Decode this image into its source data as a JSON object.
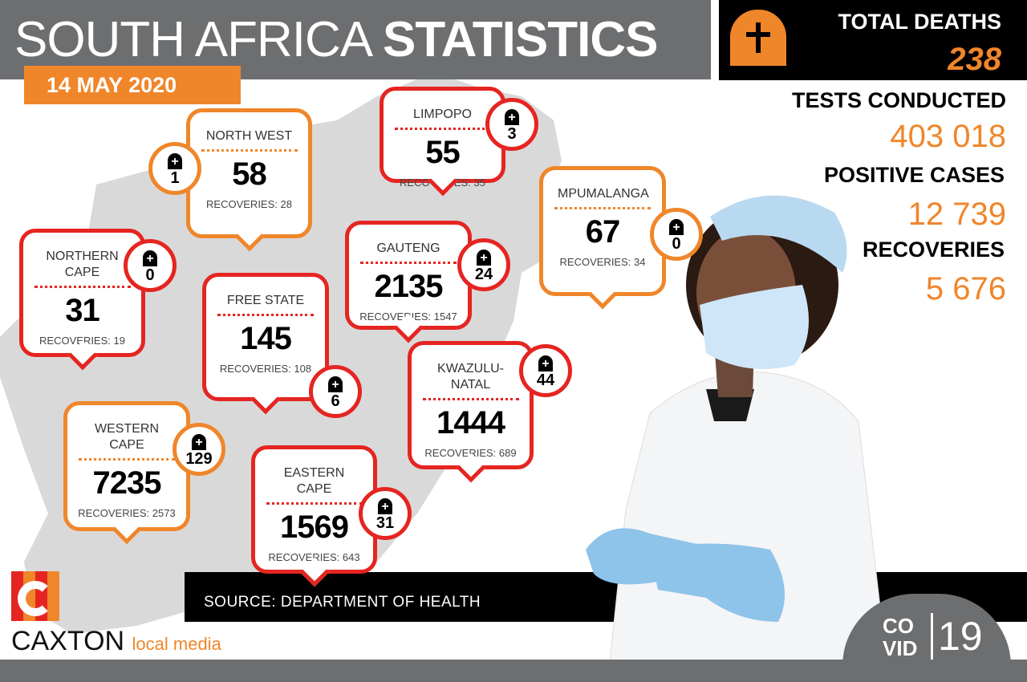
{
  "header": {
    "title_light": "SOUTH AFRICA ",
    "title_bold": "STATISTICS",
    "date": "14 MAY 2020"
  },
  "totals": {
    "deaths_label": "TOTAL DEATHS",
    "deaths": "238",
    "tests_label": "TESTS CONDUCTED",
    "tests": "403 018",
    "positive_label": "POSITIVE CASES",
    "positive": "12 739",
    "recoveries_label": "RECOVERIES",
    "recoveries": "5 676"
  },
  "provinces": [
    {
      "name": "NORTH WEST",
      "cases": "58",
      "recoveries": "RECOVERIES: 28",
      "deaths": "1",
      "color": "#f0862a"
    },
    {
      "name": "LIMPOPO",
      "cases": "55",
      "recoveries": "RECOVERIES: 35",
      "deaths": "3",
      "color": "#e52521"
    },
    {
      "name": "NORTHERN CAPE",
      "cases": "31",
      "recoveries": "RECOVERIES: 19",
      "deaths": "0",
      "color": "#e52521"
    },
    {
      "name": "MPUMALANGA",
      "cases": "67",
      "recoveries": "RECOVERIES: 34",
      "deaths": "0",
      "color": "#f0862a"
    },
    {
      "name": "GAUTENG",
      "cases": "2135",
      "recoveries": "RECOVERIES: 1547",
      "deaths": "24",
      "color": "#e52521"
    },
    {
      "name": "FREE STATE",
      "cases": "145",
      "recoveries": "RECOVERIES: 108",
      "deaths": "6",
      "color": "#e52521"
    },
    {
      "name": "KWAZULU-NATAL",
      "cases": "1444",
      "recoveries": "RECOVERIES: 689",
      "deaths": "44",
      "color": "#e52521"
    },
    {
      "name": "WESTERN CAPE",
      "cases": "7235",
      "recoveries": "RECOVERIES: 2573",
      "deaths": "129",
      "color": "#f0862a"
    },
    {
      "name": "EASTERN CAPE",
      "cases": "1569",
      "recoveries": "RECOVERIES: 643",
      "deaths": "31",
      "color": "#e52521"
    }
  ],
  "footer": {
    "source": "SOURCE: DEPARTMENT OF HEALTH",
    "brand": "CAXTON",
    "brand_sub": "local media",
    "covid_top": "CO",
    "covid_bottom": "VID",
    "covid_num": "19"
  }
}
